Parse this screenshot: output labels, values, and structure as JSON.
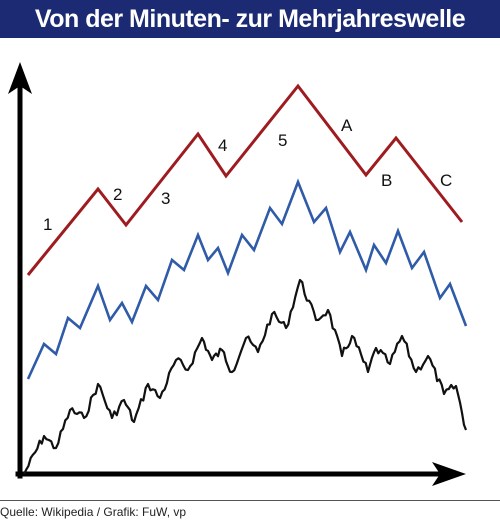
{
  "title": "Von der Minuten- zur Mehrjahreswelle",
  "source": "Quelle: Wikipedia / Grafik: FuW, vp",
  "colors": {
    "title_background": "#1b2a73",
    "title_text": "#ffffff",
    "wave_top": "#9e1b1f",
    "wave_middle": "#2f5ba8",
    "wave_bottom": "#111111",
    "axes": "#000000"
  },
  "wave_labels": {
    "impulse": [
      "1",
      "2",
      "3",
      "4",
      "5"
    ],
    "correction": [
      "A",
      "B",
      "C"
    ]
  }
}
